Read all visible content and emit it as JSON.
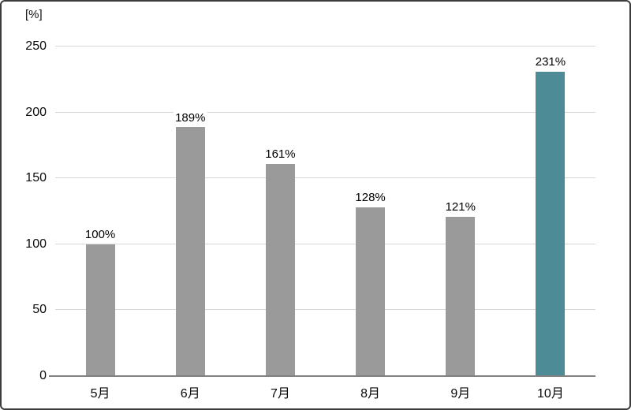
{
  "chart_data": {
    "type": "bar",
    "title": "",
    "unit_label": "[%]",
    "categories": [
      "5月",
      "6月",
      "7月",
      "8月",
      "9月",
      "10月"
    ],
    "values": [
      100,
      189,
      161,
      128,
      121,
      231
    ],
    "value_labels": [
      "100%",
      "189%",
      "161%",
      "128%",
      "121%",
      "231%"
    ],
    "ylim": [
      0,
      250
    ],
    "yticks": [
      0,
      50,
      100,
      150,
      200,
      250
    ],
    "grid": true,
    "legend": "none",
    "bar_color": "#9a9a9a",
    "highlight_color": "#4d8c96",
    "highlight_index": 5,
    "gridline_color": "#d7d7d7",
    "axis_color": "#828282"
  }
}
